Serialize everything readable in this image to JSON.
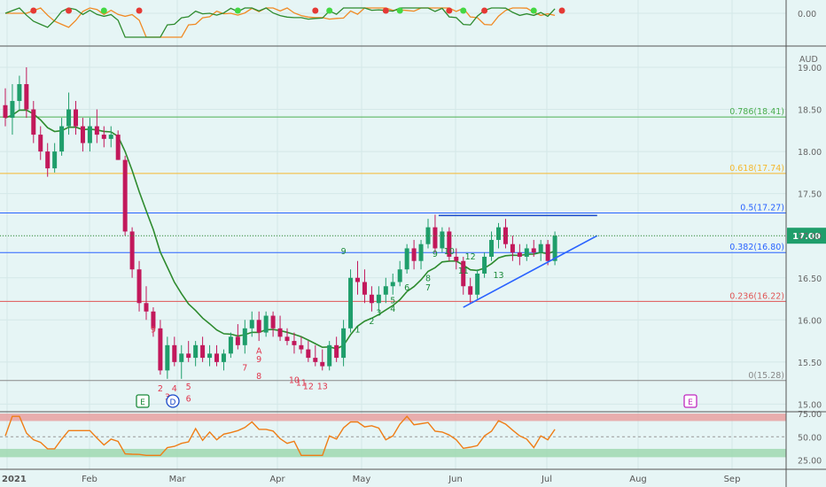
{
  "chart_data": {
    "type": "candlestick",
    "currency": "AUD",
    "x_axis": {
      "ticks": [
        "2021",
        "Feb",
        "Mar",
        "Apr",
        "May",
        "Jun",
        "Jul",
        "Aug",
        "Sep"
      ]
    },
    "price_panel": {
      "y_ticks": [
        "19.00",
        "18.50",
        "18.00",
        "17.50",
        "17.00",
        "16.50",
        "16.00",
        "15.50",
        "15.00"
      ],
      "ylim": [
        15.0,
        19.2
      ],
      "last_price": "17.00",
      "fib_levels": [
        {
          "label": "0.786(18.41)",
          "value": 18.41,
          "color": "#4caf50"
        },
        {
          "label": "0.618(17.74)",
          "value": 17.74,
          "color": "#f5b82e"
        },
        {
          "label": "0.5(17.27)",
          "value": 17.27,
          "color": "#2962ff"
        },
        {
          "label": "0.382(16.80)",
          "value": 16.8,
          "color": "#2962ff"
        },
        {
          "label": "0.236(16.22)",
          "value": 16.22,
          "color": "#e05555"
        },
        {
          "label": "0(15.28)",
          "value": 15.28,
          "color": "#888888"
        }
      ],
      "moving_average_color": "#2e8b2e",
      "candles": [
        {
          "o": 18.55,
          "h": 18.75,
          "l": 18.3,
          "c": 18.4
        },
        {
          "o": 18.4,
          "h": 18.8,
          "l": 18.2,
          "c": 18.6
        },
        {
          "o": 18.6,
          "h": 18.9,
          "l": 18.5,
          "c": 18.8
        },
        {
          "o": 18.8,
          "h": 19.0,
          "l": 18.4,
          "c": 18.5
        },
        {
          "o": 18.5,
          "h": 18.6,
          "l": 18.1,
          "c": 18.2
        },
        {
          "o": 18.2,
          "h": 18.3,
          "l": 17.9,
          "c": 18.0
        },
        {
          "o": 18.0,
          "h": 18.1,
          "l": 17.7,
          "c": 17.8
        },
        {
          "o": 17.8,
          "h": 18.1,
          "l": 17.75,
          "c": 18.0
        },
        {
          "o": 18.0,
          "h": 18.4,
          "l": 17.95,
          "c": 18.3
        },
        {
          "o": 18.3,
          "h": 18.7,
          "l": 18.2,
          "c": 18.5
        },
        {
          "o": 18.5,
          "h": 18.6,
          "l": 18.2,
          "c": 18.3
        },
        {
          "o": 18.3,
          "h": 18.4,
          "l": 18.0,
          "c": 18.1
        },
        {
          "o": 18.1,
          "h": 18.4,
          "l": 18.0,
          "c": 18.3
        },
        {
          "o": 18.3,
          "h": 18.5,
          "l": 18.1,
          "c": 18.2
        },
        {
          "o": 18.2,
          "h": 18.3,
          "l": 18.05,
          "c": 18.15
        },
        {
          "o": 18.15,
          "h": 18.3,
          "l": 18.05,
          "c": 18.2
        },
        {
          "o": 18.2,
          "h": 18.25,
          "l": 17.9,
          "c": 17.9
        },
        {
          "o": 17.9,
          "h": 17.95,
          "l": 17.0,
          "c": 17.05
        },
        {
          "o": 17.05,
          "h": 17.1,
          "l": 16.5,
          "c": 16.6
        },
        {
          "o": 16.6,
          "h": 16.7,
          "l": 16.1,
          "c": 16.2
        },
        {
          "o": 16.2,
          "h": 16.4,
          "l": 16.0,
          "c": 16.1
        },
        {
          "o": 16.1,
          "h": 16.15,
          "l": 15.8,
          "c": 15.9
        },
        {
          "o": 15.9,
          "h": 16.0,
          "l": 15.35,
          "c": 15.4
        },
        {
          "o": 15.4,
          "h": 15.8,
          "l": 15.3,
          "c": 15.7
        },
        {
          "o": 15.7,
          "h": 15.8,
          "l": 15.45,
          "c": 15.5
        },
        {
          "o": 15.5,
          "h": 15.7,
          "l": 15.3,
          "c": 15.6
        },
        {
          "o": 15.6,
          "h": 15.75,
          "l": 15.5,
          "c": 15.55
        },
        {
          "o": 15.55,
          "h": 15.75,
          "l": 15.45,
          "c": 15.7
        },
        {
          "o": 15.7,
          "h": 15.8,
          "l": 15.5,
          "c": 15.55
        },
        {
          "o": 15.55,
          "h": 15.7,
          "l": 15.45,
          "c": 15.6
        },
        {
          "o": 15.6,
          "h": 15.7,
          "l": 15.45,
          "c": 15.5
        },
        {
          "o": 15.5,
          "h": 15.65,
          "l": 15.4,
          "c": 15.6
        },
        {
          "o": 15.6,
          "h": 15.85,
          "l": 15.55,
          "c": 15.8
        },
        {
          "o": 15.8,
          "h": 15.95,
          "l": 15.65,
          "c": 15.7
        },
        {
          "o": 15.7,
          "h": 16.0,
          "l": 15.6,
          "c": 15.9
        },
        {
          "o": 15.9,
          "h": 16.1,
          "l": 15.8,
          "c": 16.0
        },
        {
          "o": 16.0,
          "h": 16.1,
          "l": 15.75,
          "c": 15.85
        },
        {
          "o": 15.85,
          "h": 16.1,
          "l": 15.8,
          "c": 16.05
        },
        {
          "o": 16.05,
          "h": 16.1,
          "l": 15.8,
          "c": 15.9
        },
        {
          "o": 15.9,
          "h": 16.05,
          "l": 15.75,
          "c": 15.8
        },
        {
          "o": 15.8,
          "h": 15.9,
          "l": 15.7,
          "c": 15.75
        },
        {
          "o": 15.75,
          "h": 15.85,
          "l": 15.6,
          "c": 15.7
        },
        {
          "o": 15.7,
          "h": 15.8,
          "l": 15.6,
          "c": 15.65
        },
        {
          "o": 15.65,
          "h": 15.75,
          "l": 15.5,
          "c": 15.55
        },
        {
          "o": 15.55,
          "h": 15.7,
          "l": 15.45,
          "c": 15.5
        },
        {
          "o": 15.5,
          "h": 15.65,
          "l": 15.4,
          "c": 15.45
        },
        {
          "o": 15.45,
          "h": 15.75,
          "l": 15.4,
          "c": 15.7
        },
        {
          "o": 15.7,
          "h": 15.8,
          "l": 15.5,
          "c": 15.55
        },
        {
          "o": 15.55,
          "h": 16.0,
          "l": 15.45,
          "c": 15.9
        },
        {
          "o": 15.9,
          "h": 16.6,
          "l": 15.85,
          "c": 16.5
        },
        {
          "o": 16.5,
          "h": 16.7,
          "l": 16.3,
          "c": 16.45
        },
        {
          "o": 16.45,
          "h": 16.6,
          "l": 16.2,
          "c": 16.3
        },
        {
          "o": 16.3,
          "h": 16.4,
          "l": 16.1,
          "c": 16.2
        },
        {
          "o": 16.2,
          "h": 16.4,
          "l": 16.1,
          "c": 16.3
        },
        {
          "o": 16.3,
          "h": 16.5,
          "l": 16.2,
          "c": 16.4
        },
        {
          "o": 16.4,
          "h": 16.55,
          "l": 16.3,
          "c": 16.45
        },
        {
          "o": 16.45,
          "h": 16.7,
          "l": 16.4,
          "c": 16.6
        },
        {
          "o": 16.6,
          "h": 16.9,
          "l": 16.55,
          "c": 16.85
        },
        {
          "o": 16.85,
          "h": 16.95,
          "l": 16.6,
          "c": 16.7
        },
        {
          "o": 16.7,
          "h": 16.95,
          "l": 16.6,
          "c": 16.9
        },
        {
          "o": 16.9,
          "h": 17.2,
          "l": 16.85,
          "c": 17.1
        },
        {
          "o": 17.1,
          "h": 17.25,
          "l": 16.8,
          "c": 16.85
        },
        {
          "o": 16.85,
          "h": 17.1,
          "l": 16.8,
          "c": 17.05
        },
        {
          "o": 17.05,
          "h": 17.1,
          "l": 16.7,
          "c": 16.75
        },
        {
          "o": 16.75,
          "h": 16.85,
          "l": 16.6,
          "c": 16.7
        },
        {
          "o": 16.7,
          "h": 16.75,
          "l": 16.3,
          "c": 16.4
        },
        {
          "o": 16.4,
          "h": 16.5,
          "l": 16.2,
          "c": 16.3
        },
        {
          "o": 16.3,
          "h": 16.6,
          "l": 16.25,
          "c": 16.55
        },
        {
          "o": 16.55,
          "h": 16.8,
          "l": 16.5,
          "c": 16.75
        },
        {
          "o": 16.75,
          "h": 17.05,
          "l": 16.7,
          "c": 16.95
        },
        {
          "o": 16.95,
          "h": 17.15,
          "l": 16.85,
          "c": 17.1
        },
        {
          "o": 17.1,
          "h": 17.2,
          "l": 16.85,
          "c": 16.9
        },
        {
          "o": 16.9,
          "h": 17.0,
          "l": 16.7,
          "c": 16.8
        },
        {
          "o": 16.8,
          "h": 16.9,
          "l": 16.65,
          "c": 16.75
        },
        {
          "o": 16.75,
          "h": 16.9,
          "l": 16.7,
          "c": 16.85
        },
        {
          "o": 16.85,
          "h": 16.95,
          "l": 16.75,
          "c": 16.8
        },
        {
          "o": 16.8,
          "h": 16.95,
          "l": 16.7,
          "c": 16.9
        },
        {
          "o": 16.9,
          "h": 16.95,
          "l": 16.65,
          "c": 16.7
        },
        {
          "o": 16.7,
          "h": 17.05,
          "l": 16.65,
          "c": 17.0
        }
      ],
      "seq_labels_red": [
        {
          "text": "9",
          "i": 21,
          "p": 15.85
        },
        {
          "text": "2",
          "i": 22,
          "p": 15.15
        },
        {
          "text": "3",
          "i": 23,
          "p": 15.05
        },
        {
          "text": "4",
          "i": 24,
          "p": 15.15
        },
        {
          "text": "5",
          "i": 26,
          "p": 15.17
        },
        {
          "text": "6",
          "i": 26,
          "p": 15.03
        },
        {
          "text": "7",
          "i": 34,
          "p": 15.4
        },
        {
          "text": "A",
          "i": 36,
          "p": 15.6
        },
        {
          "text": "8",
          "i": 36,
          "p": 15.3
        },
        {
          "text": "9",
          "i": 36,
          "p": 15.5
        },
        {
          "text": "10",
          "i": 41,
          "p": 15.25
        },
        {
          "text": "11",
          "i": 42,
          "p": 15.22
        },
        {
          "text": "12",
          "i": 43,
          "p": 15.18
        },
        {
          "text": "13",
          "i": 45,
          "p": 15.18
        }
      ],
      "seq_labels_green": [
        {
          "text": "1",
          "i": 50,
          "p": 15.85
        },
        {
          "text": "2",
          "i": 52,
          "p": 15.95
        },
        {
          "text": "3",
          "i": 53,
          "p": 16.05
        },
        {
          "text": "4",
          "i": 55,
          "p": 16.1
        },
        {
          "text": "5",
          "i": 55,
          "p": 16.2
        },
        {
          "text": "6",
          "i": 57,
          "p": 16.35
        },
        {
          "text": "7",
          "i": 60,
          "p": 16.35
        },
        {
          "text": "8",
          "i": 60,
          "p": 16.46
        },
        {
          "text": "9",
          "i": 61,
          "p": 16.75
        },
        {
          "text": "10",
          "i": 63,
          "p": 16.78
        },
        {
          "text": "11",
          "i": 65,
          "p": 16.55
        },
        {
          "text": "12",
          "i": 66,
          "p": 16.72
        },
        {
          "text": "13",
          "i": 70,
          "p": 16.5
        },
        {
          "text": "9",
          "i": 48,
          "p": 16.78
        }
      ],
      "trend_lines": [
        {
          "i1": 61.5,
          "p1": 17.24,
          "i2": 84,
          "p2": 17.24,
          "color": "#1848c8"
        },
        {
          "i1": 65,
          "p1": 16.15,
          "i2": 84,
          "p2": 17.0,
          "color": "#2962ff"
        }
      ]
    },
    "top_indicator": {
      "y_ticks": [
        "0.00"
      ]
    },
    "rsi_panel": {
      "y_ticks": [
        "75.00",
        "50.00",
        "25.00"
      ],
      "upper": 70,
      "lower": 30
    },
    "event_markers": [
      {
        "letter": "E",
        "type": "earnings"
      },
      {
        "letter": "D",
        "type": "dividend"
      },
      {
        "letter": "E",
        "type": "earnings-future"
      }
    ]
  }
}
